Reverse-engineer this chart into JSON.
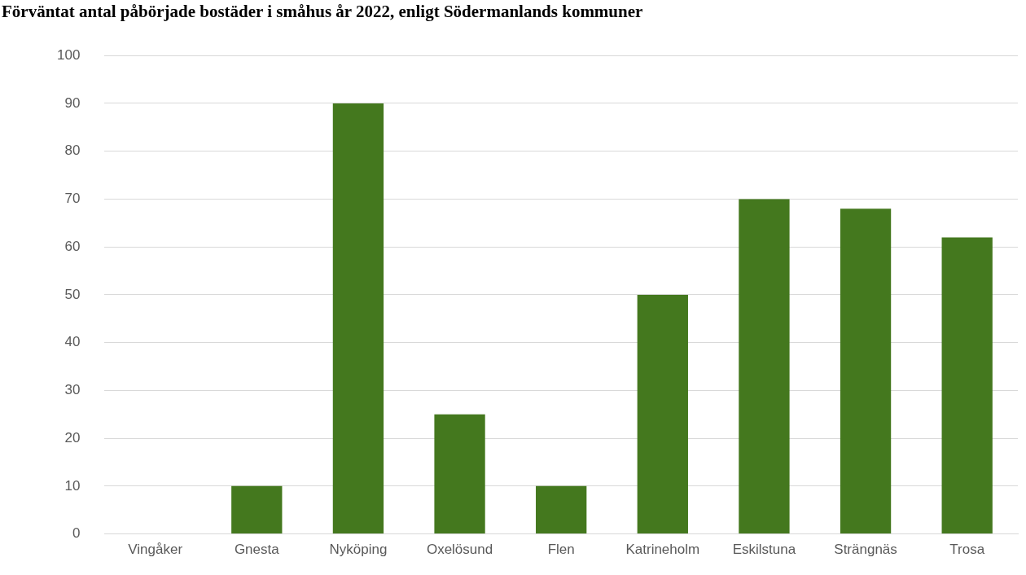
{
  "chart_data": {
    "type": "bar",
    "title": "Förväntat antal påbörjade bostäder i småhus år 2022, enligt Södermanlands kommuner",
    "categories": [
      "Vingåker",
      "Gnesta",
      "Nyköping",
      "Oxelösund",
      "Flen",
      "Katrineholm",
      "Eskilstuna",
      "Strängnäs",
      "Trosa"
    ],
    "values": [
      0,
      10,
      90,
      25,
      10,
      50,
      70,
      68,
      62
    ],
    "color": "#44781e",
    "ylim": [
      0,
      100
    ],
    "yticks": [
      0,
      10,
      20,
      30,
      40,
      50,
      60,
      70,
      80,
      90,
      100
    ],
    "grid": "y"
  }
}
